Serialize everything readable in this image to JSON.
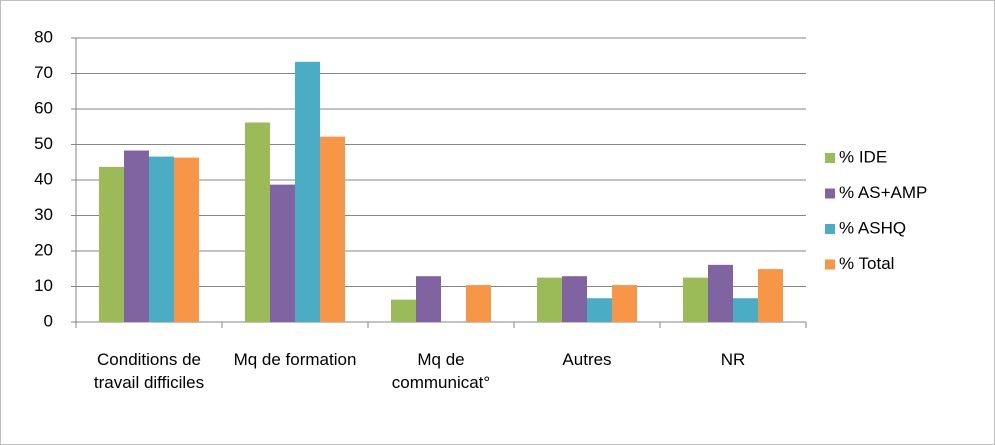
{
  "chart_data": {
    "type": "bar",
    "categories": [
      "Conditions de travail difficiles",
      "Mq de formation",
      "Mq de communicat°",
      "Autres",
      "NR"
    ],
    "series": [
      {
        "name": "% IDE",
        "color": "#9bbb59",
        "values": [
          43.7,
          56.2,
          6.3,
          12.5,
          12.5
        ]
      },
      {
        "name": "% AS+AMP",
        "color": "#8064a2",
        "values": [
          48.3,
          38.7,
          12.9,
          12.9,
          16.1
        ]
      },
      {
        "name": "% ASHQ",
        "color": "#4bacc6",
        "values": [
          46.6,
          73.3,
          0,
          6.7,
          6.7
        ]
      },
      {
        "name": "% Total",
        "color": "#f79646",
        "values": [
          46.3,
          52.2,
          10.4,
          10.4,
          14.9
        ]
      }
    ],
    "ylim": [
      0,
      80
    ],
    "yticks": [
      0,
      10,
      20,
      30,
      40,
      50,
      60,
      70,
      80
    ],
    "grid": true,
    "legend": "right"
  }
}
